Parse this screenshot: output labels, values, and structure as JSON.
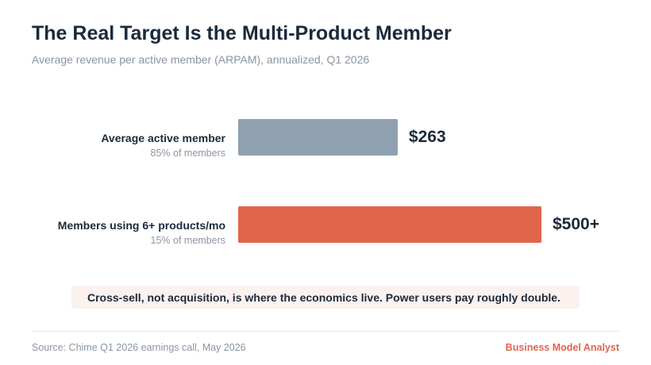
{
  "header": {
    "title": "The Real Target Is the Multi-Product Member",
    "subtitle": "Average revenue per active member (ARPAM), annualized, Q1 2026"
  },
  "chart_data": {
    "type": "bar",
    "orientation": "horizontal",
    "title": "The Real Target Is the Multi-Product Member",
    "subtitle": "Average revenue per active member (ARPAM), annualized, Q1 2026",
    "categories": [
      "Average active member",
      "Members using 6+ products/mo"
    ],
    "category_notes": [
      "85% of members",
      "15% of members"
    ],
    "values": [
      263,
      500
    ],
    "value_labels": [
      "$263",
      "$500+"
    ],
    "colors": [
      "#8fa1b1",
      "#e0654d"
    ],
    "unit": "USD",
    "grid": false,
    "legend": "none"
  },
  "callout": {
    "text": "Cross-sell, not acquisition, is where the economics live. Power users pay roughly double."
  },
  "footer": {
    "source": "Source: Chime Q1 2026 earnings call, May 2026",
    "brand": "Business Model Analyst"
  }
}
